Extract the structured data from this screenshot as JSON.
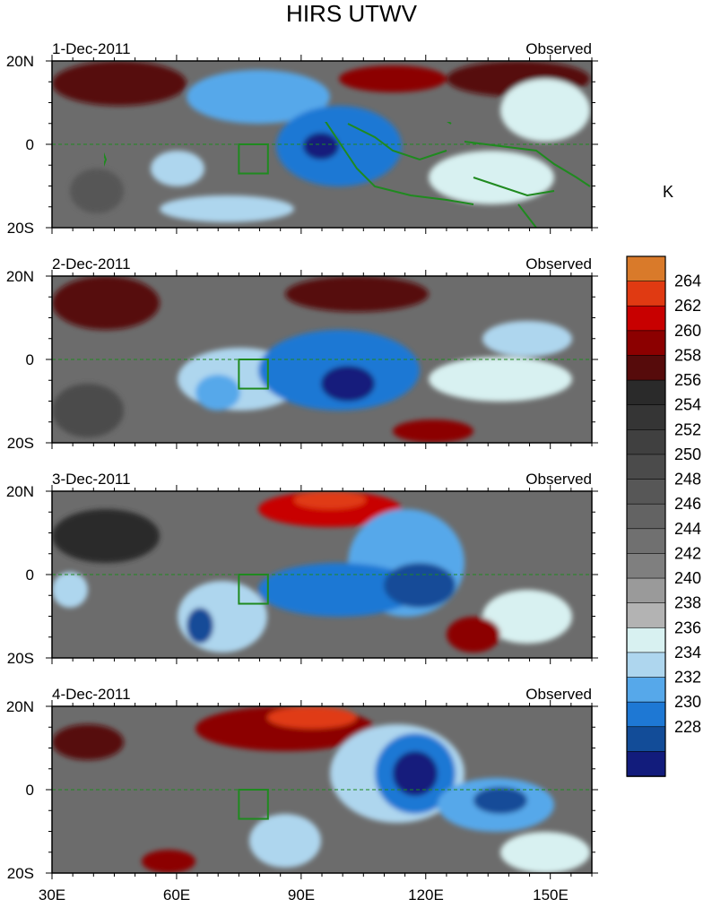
{
  "chart_data": {
    "type": "heatmap",
    "title": "HIRS UTWV",
    "units": "K",
    "panels": [
      {
        "date": "1-Dec-2011",
        "label": "Observed"
      },
      {
        "date": "2-Dec-2011",
        "label": "Observed"
      },
      {
        "date": "3-Dec-2011",
        "label": "Observed"
      },
      {
        "date": "4-Dec-2011",
        "label": "Observed"
      }
    ],
    "x_ticks": [
      "30E",
      "60E",
      "90E",
      "120E",
      "150E"
    ],
    "x_tick_values": [
      30,
      60,
      90,
      120,
      150
    ],
    "y_ticks": [
      "20N",
      "0",
      "20S"
    ],
    "y_tick_values": [
      20,
      0,
      -20
    ],
    "xlim": [
      30,
      160
    ],
    "ylim": [
      -20,
      20
    ],
    "highlight_box": {
      "lon": [
        75,
        82
      ],
      "lat": [
        -7,
        0
      ]
    },
    "colorbar": {
      "labels": [
        "264",
        "262",
        "260",
        "258",
        "256",
        "254",
        "252",
        "250",
        "248",
        "246",
        "244",
        "242",
        "240",
        "238",
        "236",
        "234",
        "232",
        "230",
        "228"
      ],
      "colors": [
        "#d97a2a",
        "#e03a12",
        "#c80000",
        "#8c0000",
        "#560b0b",
        "#2a2a2a",
        "#353535",
        "#404040",
        "#4b4b4b",
        "#575757",
        "#636363",
        "#707070",
        "#7f7f7f",
        "#9a9a9a",
        "#b3b3b3",
        "#d8f1f1",
        "#aed6ee",
        "#56a8ea",
        "#1e78d4",
        "#124c98",
        "#121c7c"
      ]
    },
    "colors": {
      "coastline": "#1f8a1f",
      "background": "#6c6c6c"
    }
  }
}
